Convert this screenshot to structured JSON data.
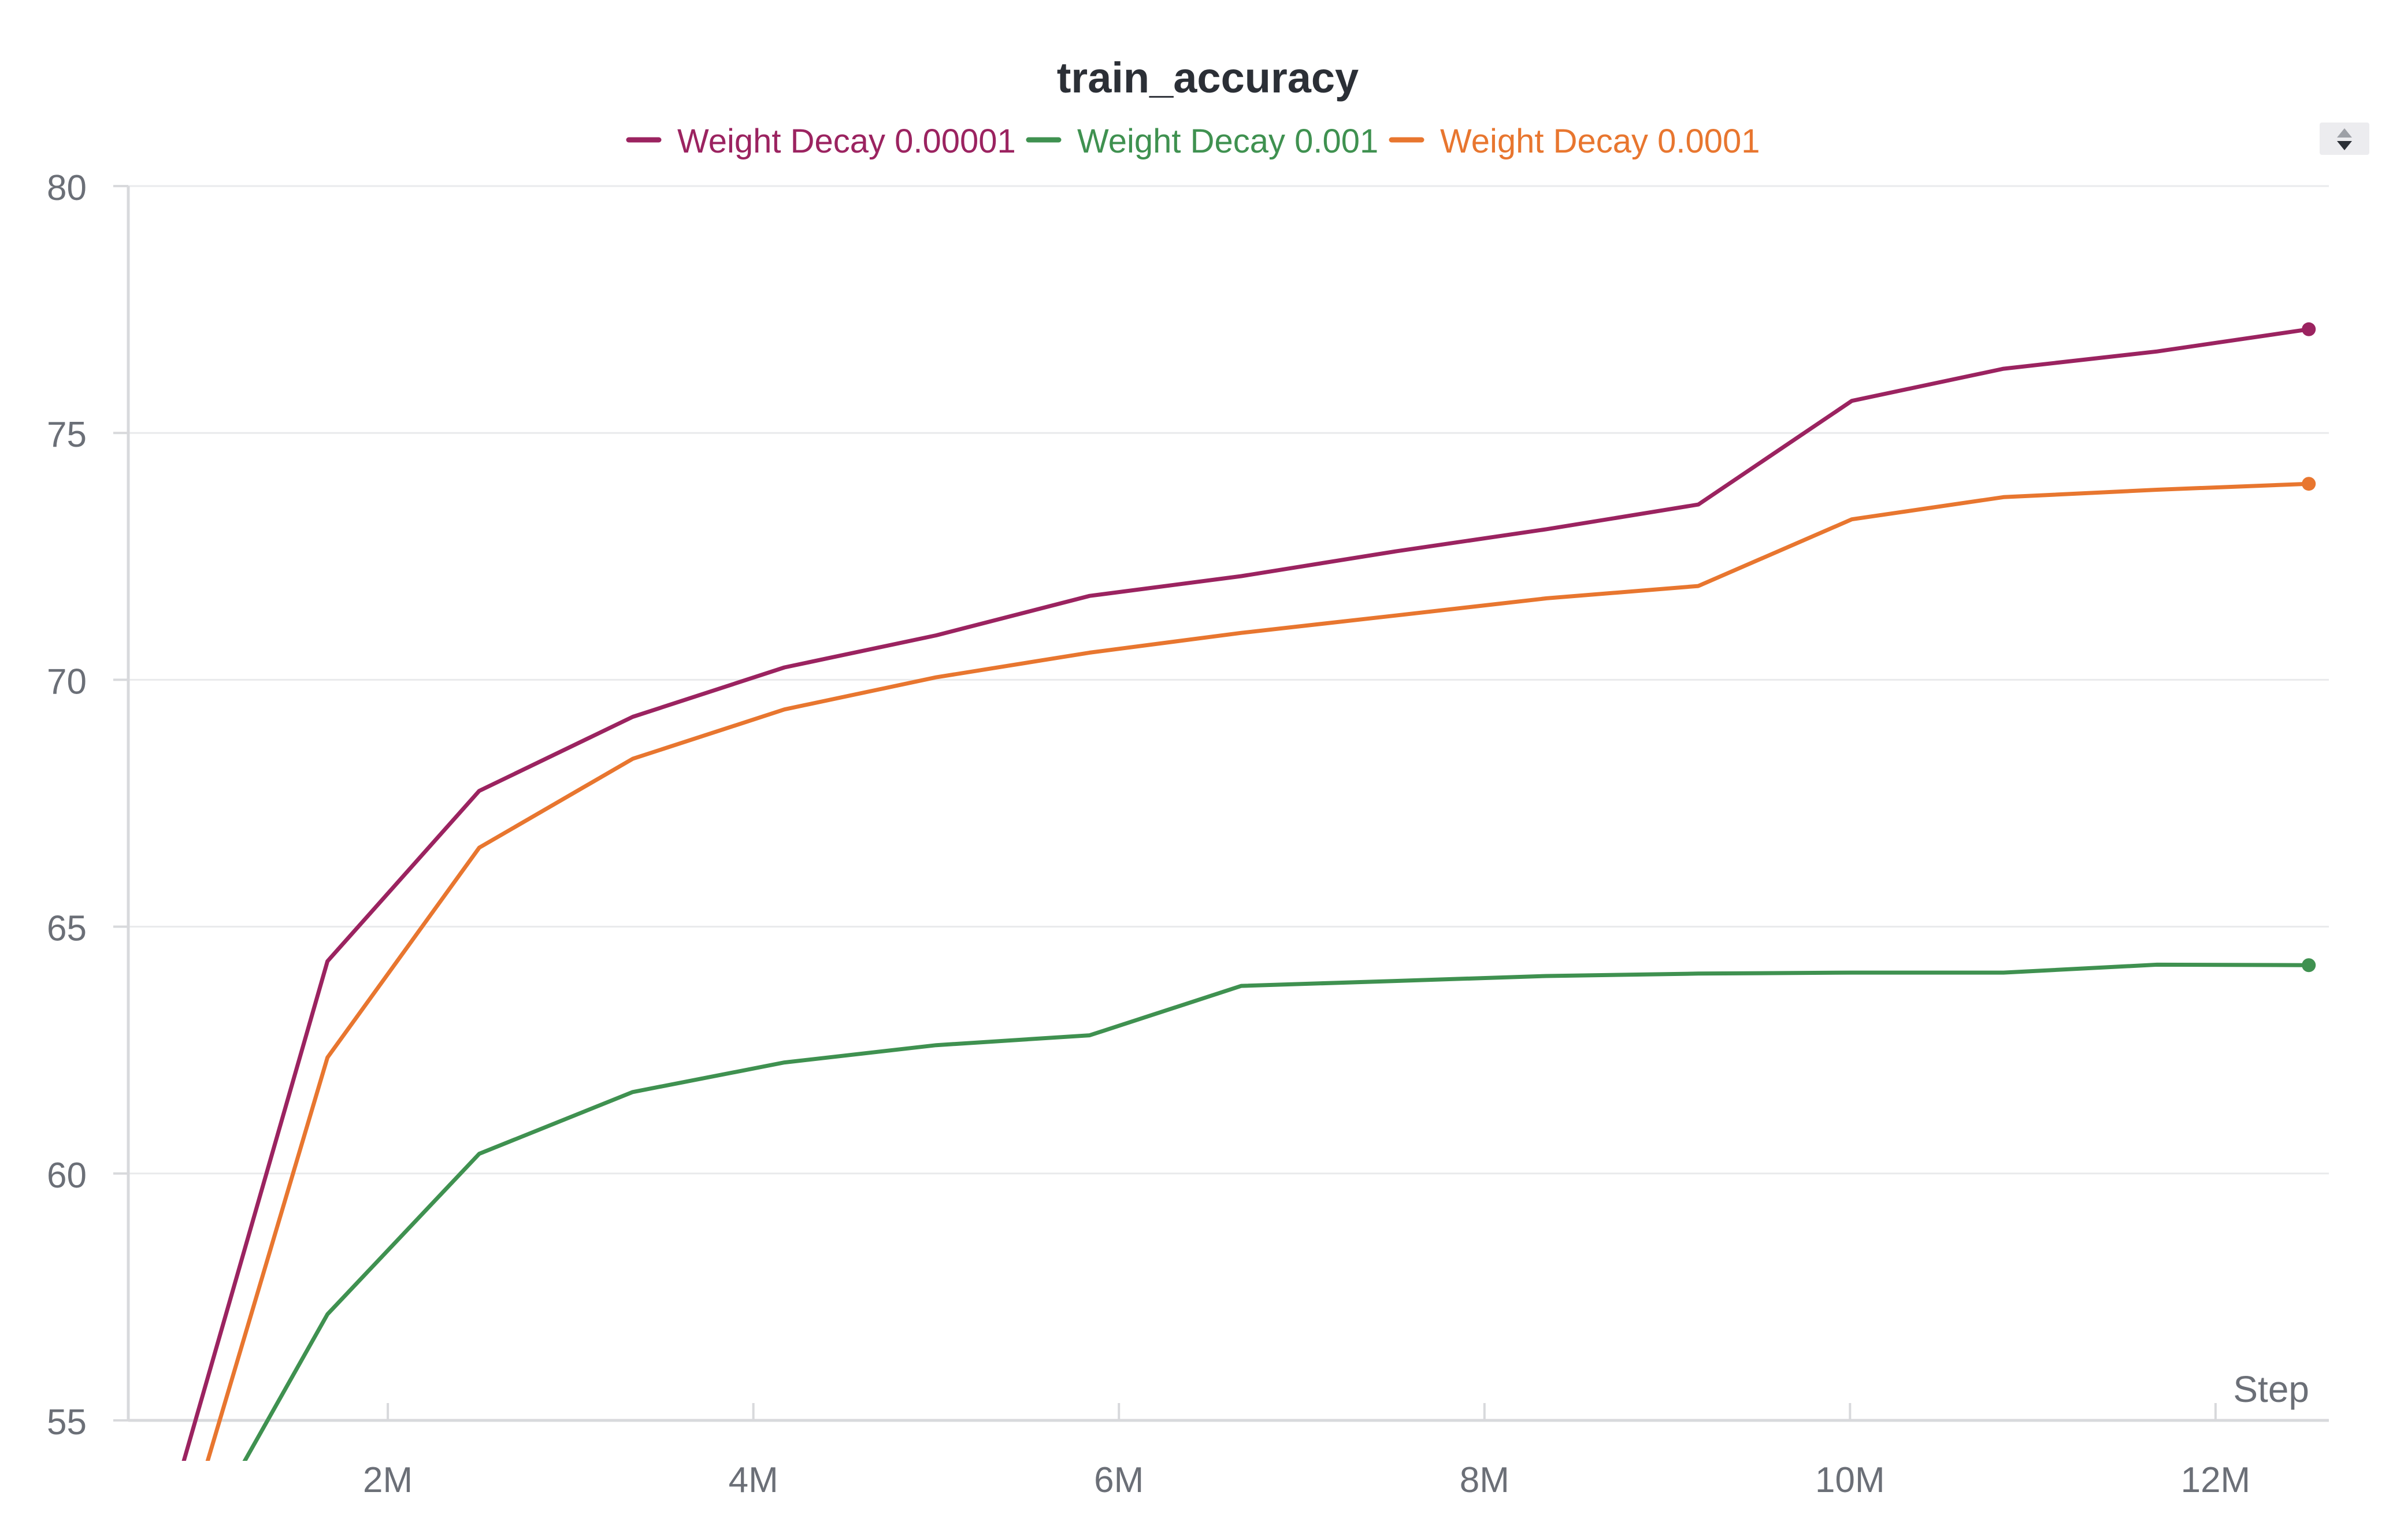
{
  "chart_data": {
    "type": "line",
    "title": "train_accuracy",
    "xlabel": "Step",
    "ylabel": "",
    "xlim": [
      580000,
      12620000
    ],
    "ylim": [
      55,
      80
    ],
    "grid": true,
    "legend_position": "top-center",
    "x_ticks": [
      {
        "value": 2000000,
        "label": "2M"
      },
      {
        "value": 4000000,
        "label": "4M"
      },
      {
        "value": 6000000,
        "label": "6M"
      },
      {
        "value": 8000000,
        "label": "8M"
      },
      {
        "value": 10000000,
        "label": "10M"
      },
      {
        "value": 12000000,
        "label": "12M"
      }
    ],
    "y_ticks": [
      {
        "value": 55,
        "label": "55"
      },
      {
        "value": 60,
        "label": "60"
      },
      {
        "value": 65,
        "label": "65"
      },
      {
        "value": 70,
        "label": "70"
      },
      {
        "value": 75,
        "label": "75"
      },
      {
        "value": 80,
        "label": "80"
      }
    ],
    "series": [
      {
        "name": "Weight Decay 0.00001",
        "color": "#9b2360",
        "points": [
          [
            870000,
            54.0
          ],
          [
            1670000,
            64.3
          ],
          [
            2500000,
            67.75
          ],
          [
            3340000,
            69.25
          ],
          [
            4170000,
            70.25
          ],
          [
            5000000,
            70.9
          ],
          [
            5840000,
            71.7
          ],
          [
            6670000,
            72.1
          ],
          [
            7510000,
            72.6
          ],
          [
            8340000,
            73.05
          ],
          [
            9170000,
            73.55
          ],
          [
            10010000,
            75.65
          ],
          [
            10840000,
            76.3
          ],
          [
            11680000,
            76.65
          ],
          [
            12510000,
            77.1
          ]
        ]
      },
      {
        "name": "Weight Decay 0.001",
        "color": "#3f9150",
        "points": [
          [
            1190000,
            54.0
          ],
          [
            1670000,
            57.15
          ],
          [
            2500000,
            60.4
          ],
          [
            3340000,
            61.65
          ],
          [
            4170000,
            62.25
          ],
          [
            5000000,
            62.6
          ],
          [
            5840000,
            62.8
          ],
          [
            6670000,
            63.8
          ],
          [
            7510000,
            63.9
          ],
          [
            8340000,
            64.0
          ],
          [
            9170000,
            64.05
          ],
          [
            10010000,
            64.07
          ],
          [
            10840000,
            64.07
          ],
          [
            11680000,
            64.23
          ],
          [
            12510000,
            64.22
          ]
        ]
      },
      {
        "name": "Weight Decay 0.0001",
        "color": "#e8762f",
        "points": [
          [
            1000000,
            54.0
          ],
          [
            1670000,
            62.35
          ],
          [
            2500000,
            66.6
          ],
          [
            3340000,
            68.4
          ],
          [
            4170000,
            69.4
          ],
          [
            5000000,
            70.05
          ],
          [
            5840000,
            70.55
          ],
          [
            6670000,
            70.95
          ],
          [
            7510000,
            71.3
          ],
          [
            8340000,
            71.65
          ],
          [
            9170000,
            71.9
          ],
          [
            10010000,
            73.25
          ],
          [
            10840000,
            73.7
          ],
          [
            11680000,
            73.85
          ],
          [
            12510000,
            73.97
          ]
        ]
      }
    ]
  },
  "colors": {
    "title": "#2b2f36",
    "axis_text": "#6b6f77",
    "grid": "#e9eaec",
    "axis_line": "#d8d9dc",
    "scroll_button_bg": "#ececef",
    "scroll_arrow_up": "#9da0a6",
    "scroll_arrow_down": "#2b2f36"
  },
  "icons": {
    "legend_scroll": "up-down-arrows-icon"
  }
}
